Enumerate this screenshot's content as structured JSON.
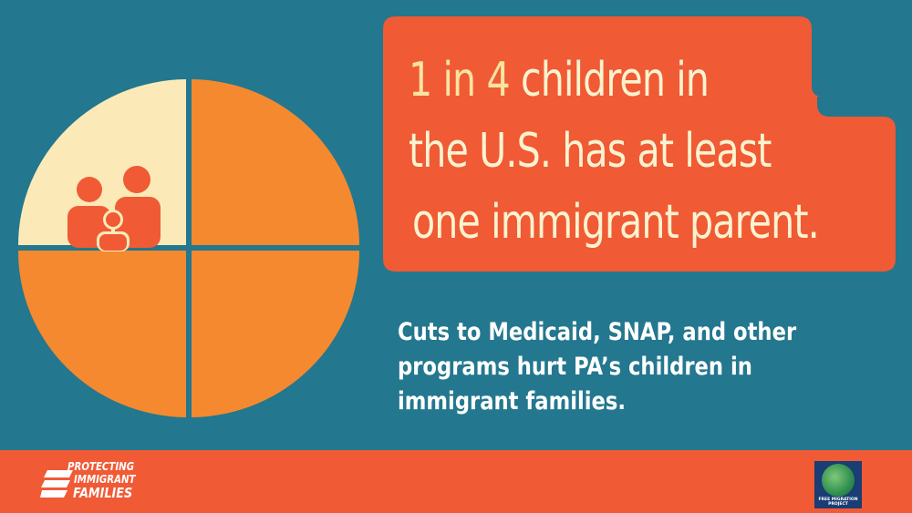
{
  "headline": {
    "accent": "1 in 4",
    "line1_rest": " children in",
    "line2": "the U.S. has at least",
    "line3": "one immigrant parent."
  },
  "subtext": {
    "line1": "Cuts to Medicaid, SNAP, and other",
    "line2": "programs hurt PA’s children in",
    "line3": "immigrant families."
  },
  "logos": {
    "left": {
      "line1": "PROTECTING",
      "line2": "IMMIGRANT",
      "line3": "FAMILIES"
    },
    "right": {
      "line1": "FREE MIGRATION",
      "line2": "PROJECT"
    }
  },
  "pie": {
    "highlighted_fraction": 0.25,
    "icon": "family-icon"
  },
  "colors": {
    "background": "#23778e",
    "orange": "#f5892f",
    "highlight": "#fbeab7",
    "red": "#f05a35",
    "accent_text": "#fae3a0"
  }
}
